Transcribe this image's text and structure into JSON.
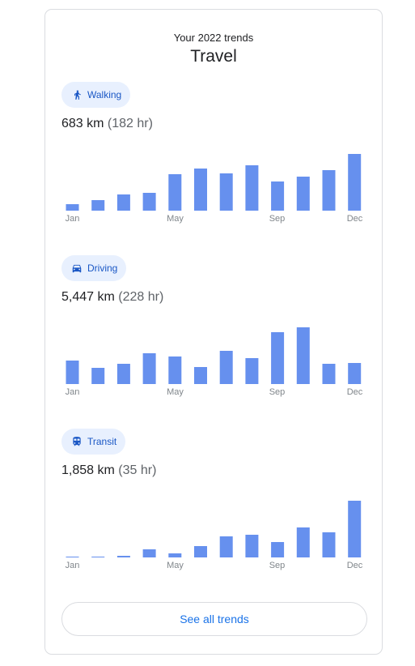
{
  "header": {
    "subtitle": "Your 2022 trends",
    "title": "Travel"
  },
  "sections": [
    {
      "id": "walking",
      "chip_label": "Walking",
      "icon": "walking-icon",
      "distance": "683 km",
      "duration": "(182 hr)"
    },
    {
      "id": "driving",
      "chip_label": "Driving",
      "icon": "car-icon",
      "distance": "5,447 km",
      "duration": "(228 hr)"
    },
    {
      "id": "transit",
      "chip_label": "Transit",
      "icon": "train-icon",
      "distance": "1,858 km",
      "duration": "(35 hr)"
    }
  ],
  "footer": {
    "button_label": "See all trends"
  },
  "colors": {
    "bar": "#6690ee",
    "chip_bg": "#e8f0fe",
    "accent": "#1a73e8"
  },
  "chart_data": [
    {
      "type": "bar",
      "series_id": "walking",
      "categories": [
        "Jan",
        "Feb",
        "Mar",
        "Apr",
        "May",
        "Jun",
        "Jul",
        "Aug",
        "Sep",
        "Oct",
        "Nov",
        "Dec"
      ],
      "tick_labels": [
        "Jan",
        "May",
        "Sep",
        "Dec"
      ],
      "values": [
        8,
        13,
        20,
        22,
        45,
        52,
        46,
        56,
        36,
        42,
        50,
        70
      ],
      "ylim": [
        0,
        70
      ]
    },
    {
      "type": "bar",
      "series_id": "driving",
      "categories": [
        "Jan",
        "Feb",
        "Mar",
        "Apr",
        "May",
        "Jun",
        "Jul",
        "Aug",
        "Sep",
        "Oct",
        "Nov",
        "Dec"
      ],
      "tick_labels": [
        "Jan",
        "May",
        "Sep",
        "Dec"
      ],
      "values": [
        29,
        20,
        25,
        38,
        34,
        21,
        41,
        32,
        64,
        70,
        25,
        26
      ],
      "ylim": [
        0,
        70
      ]
    },
    {
      "type": "bar",
      "series_id": "transit",
      "categories": [
        "Jan",
        "Feb",
        "Mar",
        "Apr",
        "May",
        "Jun",
        "Jul",
        "Aug",
        "Sep",
        "Oct",
        "Nov",
        "Dec"
      ],
      "tick_labels": [
        "Jan",
        "May",
        "Sep",
        "Dec"
      ],
      "values": [
        1,
        1,
        2,
        10,
        5,
        14,
        26,
        28,
        19,
        37,
        31,
        70
      ],
      "ylim": [
        0,
        70
      ]
    }
  ]
}
